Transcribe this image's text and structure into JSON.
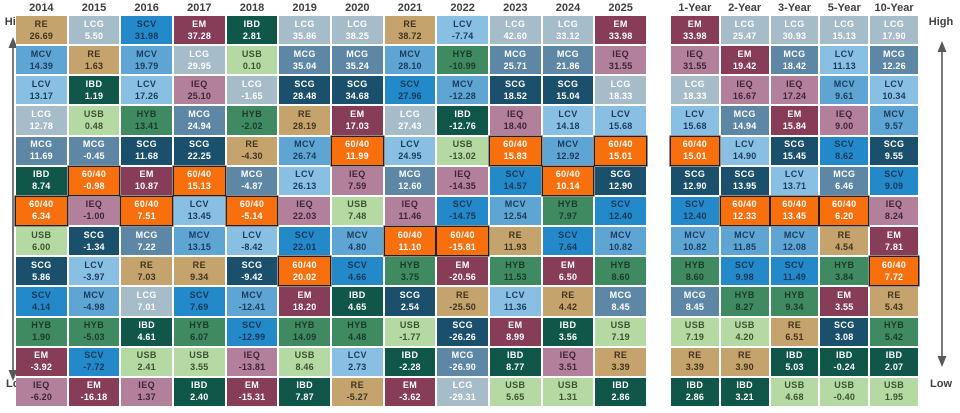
{
  "labels": {
    "high_left": "High",
    "low_left": "Low",
    "high_right": "High",
    "low_right": "Low"
  },
  "colors": {
    "arrow": "#595959",
    "header_text": "#404040",
    "highlight_border": "#1f1f1f"
  },
  "asset_classes": {
    "RE": {
      "bg": "#C4A46C",
      "fg": "#41331F"
    },
    "LCG": {
      "bg": "#A6BCC9",
      "fg": "#FFFFFF"
    },
    "SCV": {
      "bg": "#2389C9",
      "fg": "#16385C"
    },
    "EM": {
      "bg": "#873C58",
      "fg": "#FFFFFF"
    },
    "IBD": {
      "bg": "#10574A",
      "fg": "#FFFFFF"
    },
    "MCG": {
      "bg": "#5E87A5",
      "fg": "#FFFFFF"
    },
    "MCV": {
      "bg": "#5FA5D3",
      "fg": "#193C5E"
    },
    "HYB": {
      "bg": "#3F8A60",
      "fg": "#1B3A2B"
    },
    "LCV": {
      "bg": "#89BFE3",
      "fg": "#193C5E"
    },
    "USB": {
      "bg": "#B5D9A2",
      "fg": "#3C5230"
    },
    "SCG": {
      "bg": "#1A506B",
      "fg": "#FFFFFF"
    },
    "IEQ": {
      "bg": "#B3809B",
      "fg": "#3E2538"
    },
    "60/40": {
      "bg": "#F86F0D",
      "fg": "#FFFFFF"
    }
  },
  "chart_data": {
    "type": "heatmap",
    "layout": "asset-class returns quilt; each column ranks asset classes best (top/High) to worst (bottom/Low); 60/40 cells outlined",
    "axis_left": {
      "top": "High",
      "bottom": "Low"
    },
    "axis_right": {
      "top": "High",
      "bottom": "Low"
    },
    "year_columns": [
      {
        "header": "2014",
        "cells": [
          {
            "a": "RE",
            "v": "26.69"
          },
          {
            "a": "MCV",
            "v": "14.39"
          },
          {
            "a": "LCV",
            "v": "13.17"
          },
          {
            "a": "LCG",
            "v": "12.78"
          },
          {
            "a": "MCG",
            "v": "11.69"
          },
          {
            "a": "IBD",
            "v": "8.74"
          },
          {
            "a": "60/40",
            "v": "6.34"
          },
          {
            "a": "USB",
            "v": "6.00"
          },
          {
            "a": "SCG",
            "v": "5.86"
          },
          {
            "a": "SCV",
            "v": "4.14"
          },
          {
            "a": "HYB",
            "v": "1.90"
          },
          {
            "a": "EM",
            "v": "-3.92"
          },
          {
            "a": "IEQ",
            "v": "-6.20"
          }
        ]
      },
      {
        "header": "2015",
        "cells": [
          {
            "a": "LCG",
            "v": "5.50"
          },
          {
            "a": "RE",
            "v": "1.63"
          },
          {
            "a": "IBD",
            "v": "1.19"
          },
          {
            "a": "USB",
            "v": "0.48"
          },
          {
            "a": "MCG",
            "v": "-0.45"
          },
          {
            "a": "60/40",
            "v": "-0.98"
          },
          {
            "a": "IEQ",
            "v": "-1.00"
          },
          {
            "a": "SCG",
            "v": "-1.34"
          },
          {
            "a": "LCV",
            "v": "-3.97"
          },
          {
            "a": "MCV",
            "v": "-4.98"
          },
          {
            "a": "HYB",
            "v": "-5.03"
          },
          {
            "a": "SCV",
            "v": "-7.72"
          },
          {
            "a": "EM",
            "v": "-16.18"
          }
        ]
      },
      {
        "header": "2016",
        "cells": [
          {
            "a": "SCV",
            "v": "31.98"
          },
          {
            "a": "MCV",
            "v": "19.79"
          },
          {
            "a": "LCV",
            "v": "17.26"
          },
          {
            "a": "HYB",
            "v": "13.41"
          },
          {
            "a": "SCG",
            "v": "11.68"
          },
          {
            "a": "EM",
            "v": "10.87"
          },
          {
            "a": "60/40",
            "v": "7.51"
          },
          {
            "a": "MCG",
            "v": "7.22"
          },
          {
            "a": "RE",
            "v": "7.03"
          },
          {
            "a": "LCG",
            "v": "7.01"
          },
          {
            "a": "IBD",
            "v": "4.61"
          },
          {
            "a": "USB",
            "v": "2.41"
          },
          {
            "a": "IEQ",
            "v": "1.37"
          }
        ]
      },
      {
        "header": "2017",
        "cells": [
          {
            "a": "EM",
            "v": "37.28"
          },
          {
            "a": "LCG",
            "v": "29.95"
          },
          {
            "a": "IEQ",
            "v": "25.10"
          },
          {
            "a": "MCG",
            "v": "24.94"
          },
          {
            "a": "SCG",
            "v": "22.25"
          },
          {
            "a": "60/40",
            "v": "15.13"
          },
          {
            "a": "LCV",
            "v": "13.45"
          },
          {
            "a": "MCV",
            "v": "13.15"
          },
          {
            "a": "RE",
            "v": "9.34"
          },
          {
            "a": "SCV",
            "v": "7.69"
          },
          {
            "a": "HYB",
            "v": "6.07"
          },
          {
            "a": "USB",
            "v": "3.55"
          },
          {
            "a": "IBD",
            "v": "2.40"
          }
        ]
      },
      {
        "header": "2018",
        "cells": [
          {
            "a": "IBD",
            "v": "2.81"
          },
          {
            "a": "USB",
            "v": "0.10"
          },
          {
            "a": "LCG",
            "v": "-1.65"
          },
          {
            "a": "HYB",
            "v": "-2.02"
          },
          {
            "a": "RE",
            "v": "-4.30"
          },
          {
            "a": "MCG",
            "v": "-4.87"
          },
          {
            "a": "60/40",
            "v": "-5.14"
          },
          {
            "a": "LCV",
            "v": "-8.42"
          },
          {
            "a": "SCG",
            "v": "-9.42"
          },
          {
            "a": "MCV",
            "v": "-12.41"
          },
          {
            "a": "SCV",
            "v": "-12.99"
          },
          {
            "a": "IEQ",
            "v": "-13.81"
          },
          {
            "a": "EM",
            "v": "-15.31"
          }
        ]
      },
      {
        "header": "2019",
        "cells": [
          {
            "a": "LCG",
            "v": "35.86"
          },
          {
            "a": "MCG",
            "v": "35.04"
          },
          {
            "a": "SCG",
            "v": "28.48"
          },
          {
            "a": "RE",
            "v": "28.19"
          },
          {
            "a": "MCV",
            "v": "26.74"
          },
          {
            "a": "LCV",
            "v": "26.13"
          },
          {
            "a": "IEQ",
            "v": "22.03"
          },
          {
            "a": "SCV",
            "v": "22.01"
          },
          {
            "a": "60/40",
            "v": "20.02"
          },
          {
            "a": "EM",
            "v": "18.20"
          },
          {
            "a": "HYB",
            "v": "14.09"
          },
          {
            "a": "USB",
            "v": "8.46"
          },
          {
            "a": "IBD",
            "v": "7.87"
          }
        ]
      },
      {
        "header": "2020",
        "cells": [
          {
            "a": "LCG",
            "v": "38.25"
          },
          {
            "a": "MCG",
            "v": "35.24"
          },
          {
            "a": "SCG",
            "v": "34.68"
          },
          {
            "a": "EM",
            "v": "17.03"
          },
          {
            "a": "60/40",
            "v": "11.99"
          },
          {
            "a": "IEQ",
            "v": "7.59"
          },
          {
            "a": "USB",
            "v": "7.48"
          },
          {
            "a": "MCV",
            "v": "4.80"
          },
          {
            "a": "SCV",
            "v": "4.66"
          },
          {
            "a": "IBD",
            "v": "4.65"
          },
          {
            "a": "HYB",
            "v": "4.48"
          },
          {
            "a": "LCV",
            "v": "2.73"
          },
          {
            "a": "RE",
            "v": "-5.27"
          }
        ]
      },
      {
        "header": "2021",
        "cells": [
          {
            "a": "RE",
            "v": "38.72"
          },
          {
            "a": "MCV",
            "v": "28.10"
          },
          {
            "a": "SCV",
            "v": "27.96"
          },
          {
            "a": "LCG",
            "v": "27.43"
          },
          {
            "a": "LCV",
            "v": "24.95"
          },
          {
            "a": "MCG",
            "v": "12.60"
          },
          {
            "a": "IEQ",
            "v": "11.46"
          },
          {
            "a": "60/40",
            "v": "11.10"
          },
          {
            "a": "HYB",
            "v": "3.75"
          },
          {
            "a": "SCG",
            "v": "2.54"
          },
          {
            "a": "USB",
            "v": "-1.77"
          },
          {
            "a": "IBD",
            "v": "-2.28"
          },
          {
            "a": "EM",
            "v": "-3.62"
          }
        ]
      },
      {
        "header": "2022",
        "cells": [
          {
            "a": "LCV",
            "v": "-7.74"
          },
          {
            "a": "HYB",
            "v": "-10.99"
          },
          {
            "a": "MCV",
            "v": "-12.28"
          },
          {
            "a": "IBD",
            "v": "-12.76"
          },
          {
            "a": "USB",
            "v": "-13.02"
          },
          {
            "a": "IEQ",
            "v": "-14.35"
          },
          {
            "a": "SCV",
            "v": "-14.75"
          },
          {
            "a": "60/40",
            "v": "-15.81"
          },
          {
            "a": "EM",
            "v": "-20.56"
          },
          {
            "a": "RE",
            "v": "-25.50"
          },
          {
            "a": "SCG",
            "v": "-26.26"
          },
          {
            "a": "MCG",
            "v": "-26.90"
          },
          {
            "a": "LCG",
            "v": "-29.31"
          }
        ]
      },
      {
        "header": "2023",
        "cells": [
          {
            "a": "LCG",
            "v": "42.60"
          },
          {
            "a": "MCG",
            "v": "25.71"
          },
          {
            "a": "SCG",
            "v": "18.52"
          },
          {
            "a": "IEQ",
            "v": "18.40"
          },
          {
            "a": "60/40",
            "v": "15.83"
          },
          {
            "a": "SCV",
            "v": "14.57"
          },
          {
            "a": "MCV",
            "v": "12.54"
          },
          {
            "a": "RE",
            "v": "11.93"
          },
          {
            "a": "HYB",
            "v": "11.53"
          },
          {
            "a": "LCV",
            "v": "11.36"
          },
          {
            "a": "EM",
            "v": "8.99"
          },
          {
            "a": "IBD",
            "v": "8.77"
          },
          {
            "a": "USB",
            "v": "5.65"
          }
        ]
      },
      {
        "header": "2024",
        "cells": [
          {
            "a": "LCG",
            "v": "33.12"
          },
          {
            "a": "MCG",
            "v": "21.86"
          },
          {
            "a": "SCG",
            "v": "15.04"
          },
          {
            "a": "LCV",
            "v": "14.18"
          },
          {
            "a": "MCV",
            "v": "12.92"
          },
          {
            "a": "60/40",
            "v": "10.14"
          },
          {
            "a": "HYB",
            "v": "7.97"
          },
          {
            "a": "SCV",
            "v": "7.64"
          },
          {
            "a": "EM",
            "v": "6.50"
          },
          {
            "a": "RE",
            "v": "4.42"
          },
          {
            "a": "IBD",
            "v": "3.56"
          },
          {
            "a": "IEQ",
            "v": "3.51"
          },
          {
            "a": "USB",
            "v": "1.31"
          }
        ]
      },
      {
        "header": "2025",
        "cells": [
          {
            "a": "EM",
            "v": "33.98"
          },
          {
            "a": "IEQ",
            "v": "31.55"
          },
          {
            "a": "LCG",
            "v": "18.33"
          },
          {
            "a": "LCV",
            "v": "15.68"
          },
          {
            "a": "60/40",
            "v": "15.01"
          },
          {
            "a": "SCG",
            "v": "12.90"
          },
          {
            "a": "SCV",
            "v": "12.40"
          },
          {
            "a": "MCV",
            "v": "10.82"
          },
          {
            "a": "HYB",
            "v": "8.60"
          },
          {
            "a": "MCG",
            "v": "8.45"
          },
          {
            "a": "USB",
            "v": "7.19"
          },
          {
            "a": "RE",
            "v": "3.39"
          },
          {
            "a": "IBD",
            "v": "2.86"
          }
        ]
      }
    ],
    "trailing_columns": [
      {
        "header": "1-Year",
        "cells": [
          {
            "a": "EM",
            "v": "33.98"
          },
          {
            "a": "IEQ",
            "v": "31.55"
          },
          {
            "a": "LCG",
            "v": "18.33"
          },
          {
            "a": "LCV",
            "v": "15.68"
          },
          {
            "a": "60/40",
            "v": "15.01"
          },
          {
            "a": "SCG",
            "v": "12.90"
          },
          {
            "a": "SCV",
            "v": "12.40"
          },
          {
            "a": "MCV",
            "v": "10.82"
          },
          {
            "a": "HYB",
            "v": "8.60"
          },
          {
            "a": "MCG",
            "v": "8.45"
          },
          {
            "a": "USB",
            "v": "7.19"
          },
          {
            "a": "RE",
            "v": "3.39"
          },
          {
            "a": "IBD",
            "v": "2.86"
          }
        ]
      },
      {
        "header": "2-Year",
        "cells": [
          {
            "a": "LCG",
            "v": "25.47"
          },
          {
            "a": "EM",
            "v": "19.42"
          },
          {
            "a": "IEQ",
            "v": "16.67"
          },
          {
            "a": "MCG",
            "v": "14.94"
          },
          {
            "a": "LCV",
            "v": "14.90"
          },
          {
            "a": "SCG",
            "v": "13.95"
          },
          {
            "a": "60/40",
            "v": "12.33"
          },
          {
            "a": "MCV",
            "v": "11.85"
          },
          {
            "a": "SCV",
            "v": "9.98"
          },
          {
            "a": "HYB",
            "v": "8.27"
          },
          {
            "a": "USB",
            "v": "4.20"
          },
          {
            "a": "RE",
            "v": "3.90"
          },
          {
            "a": "IBD",
            "v": "3.21"
          }
        ]
      },
      {
        "header": "3-Year",
        "cells": [
          {
            "a": "LCG",
            "v": "30.93"
          },
          {
            "a": "MCG",
            "v": "18.42"
          },
          {
            "a": "IEQ",
            "v": "17.24"
          },
          {
            "a": "EM",
            "v": "15.84"
          },
          {
            "a": "SCG",
            "v": "15.45"
          },
          {
            "a": "LCV",
            "v": "13.71"
          },
          {
            "a": "60/40",
            "v": "13.45"
          },
          {
            "a": "MCV",
            "v": "12.08"
          },
          {
            "a": "SCV",
            "v": "11.49"
          },
          {
            "a": "HYB",
            "v": "9.34"
          },
          {
            "a": "RE",
            "v": "6.51"
          },
          {
            "a": "IBD",
            "v": "5.03"
          },
          {
            "a": "USB",
            "v": "4.68"
          }
        ]
      },
      {
        "header": "5-Year",
        "cells": [
          {
            "a": "LCG",
            "v": "15.13"
          },
          {
            "a": "LCV",
            "v": "11.13"
          },
          {
            "a": "MCV",
            "v": "9.61"
          },
          {
            "a": "IEQ",
            "v": "9.00"
          },
          {
            "a": "SCV",
            "v": "8.62"
          },
          {
            "a": "MCG",
            "v": "6.46"
          },
          {
            "a": "60/40",
            "v": "6.20"
          },
          {
            "a": "RE",
            "v": "4.54"
          },
          {
            "a": "HYB",
            "v": "3.84"
          },
          {
            "a": "EM",
            "v": "3.55"
          },
          {
            "a": "SCG",
            "v": "3.08"
          },
          {
            "a": "IBD",
            "v": "-0.24"
          },
          {
            "a": "USB",
            "v": "-0.40"
          }
        ]
      },
      {
        "header": "10-Year",
        "cells": [
          {
            "a": "LCG",
            "v": "17.90"
          },
          {
            "a": "MCG",
            "v": "12.26"
          },
          {
            "a": "LCV",
            "v": "10.34"
          },
          {
            "a": "MCV",
            "v": "9.57"
          },
          {
            "a": "SCG",
            "v": "9.55"
          },
          {
            "a": "SCV",
            "v": "9.09"
          },
          {
            "a": "IEQ",
            "v": "8.24"
          },
          {
            "a": "EM",
            "v": "7.81"
          },
          {
            "a": "60/40",
            "v": "7.72"
          },
          {
            "a": "RE",
            "v": "5.43"
          },
          {
            "a": "HYB",
            "v": "5.42"
          },
          {
            "a": "IBD",
            "v": "2.07"
          },
          {
            "a": "USB",
            "v": "1.95"
          }
        ]
      }
    ]
  }
}
